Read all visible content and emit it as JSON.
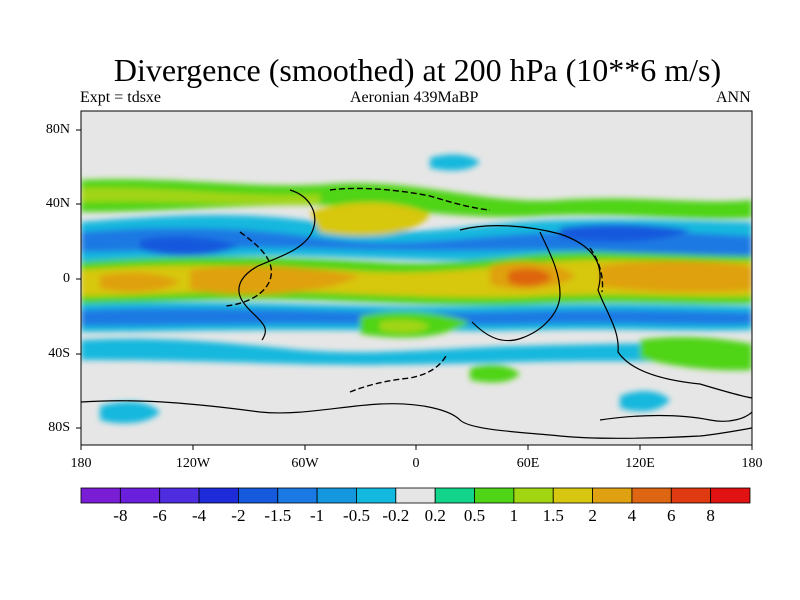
{
  "title": "Divergence (smoothed) at 200 hPa (10**6 m/s)",
  "subtitle_left": "Expt = tdsxe",
  "subtitle_center": "Aeronian 439MaBP",
  "subtitle_right": "ANN",
  "y_axis": {
    "ticks": [
      "80N",
      "40N",
      "0",
      "40S",
      "80S"
    ]
  },
  "x_axis": {
    "ticks": [
      "180",
      "120W",
      "60W",
      "0",
      "60E",
      "120E",
      "180"
    ]
  },
  "colorbar": {
    "colors": [
      "#7a1ed6",
      "#6a1fdc",
      "#4e2de0",
      "#1d2bd8",
      "#1559dd",
      "#1a79e3",
      "#1497de",
      "#12b8de",
      "#e6e6e6",
      "#12d48a",
      "#4fd417",
      "#a2d512",
      "#d7c711",
      "#dfa111",
      "#de6511",
      "#e03a13",
      "#e11212"
    ],
    "labels": [
      "-8",
      "-6",
      "-4",
      "-2",
      "-1.5",
      "-1",
      "-0.5",
      "-0.2",
      "0.2",
      "0.5",
      "1",
      "1.5",
      "2",
      "4",
      "6",
      "8"
    ]
  }
}
